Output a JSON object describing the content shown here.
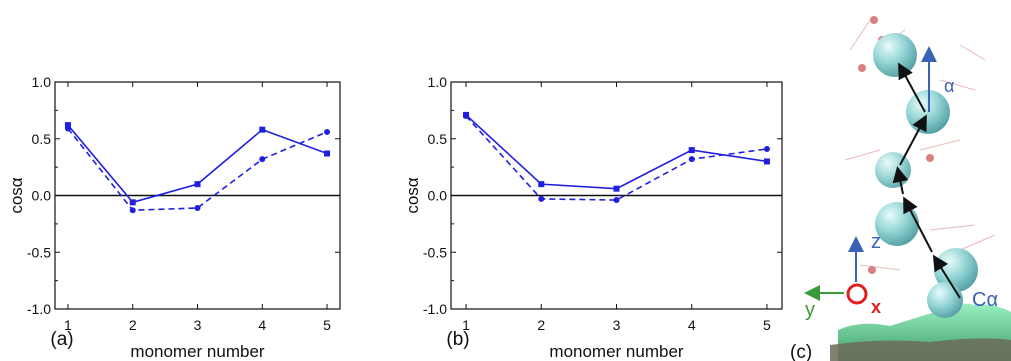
{
  "chart_data": [
    {
      "type": "line",
      "panel_label": "(a)",
      "xlabel": "monomer number",
      "ylabel": "cosα",
      "xlim": [
        0.8,
        5.2
      ],
      "ylim": [
        -1.0,
        1.0
      ],
      "x_ticks": [
        "1",
        "2",
        "3",
        "4",
        "5"
      ],
      "y_ticks": [
        "1.0",
        "0.5",
        "0.0",
        "-0.5",
        "-1.0"
      ],
      "zero_line": true,
      "x": [
        1,
        2,
        3,
        4,
        5
      ],
      "series": [
        {
          "style": "solid",
          "color": "#1f1fe0",
          "marker": "square",
          "values": [
            0.62,
            -0.06,
            0.1,
            0.58,
            0.37
          ]
        },
        {
          "style": "dashed",
          "color": "#1f1fe0",
          "marker": "circle",
          "values": [
            0.59,
            -0.13,
            -0.11,
            0.32,
            0.56
          ]
        }
      ]
    },
    {
      "type": "line",
      "panel_label": "(b)",
      "xlabel": "monomer number",
      "ylabel": "cosα",
      "xlim": [
        0.8,
        5.2
      ],
      "ylim": [
        -1.0,
        1.0
      ],
      "x_ticks": [
        "1",
        "2",
        "3",
        "4",
        "5"
      ],
      "y_ticks": [
        "1.0",
        "0.5",
        "0.0",
        "-0.5",
        "-1.0"
      ],
      "zero_line": true,
      "x": [
        1,
        2,
        3,
        4,
        5
      ],
      "series": [
        {
          "style": "solid",
          "color": "#1f1fe0",
          "marker": "square",
          "values": [
            0.71,
            0.1,
            0.06,
            0.4,
            0.3
          ]
        },
        {
          "style": "dashed",
          "color": "#1f1fe0",
          "marker": "circle",
          "values": [
            0.7,
            -0.03,
            -0.04,
            0.32,
            0.41
          ]
        }
      ]
    }
  ],
  "illustration": {
    "panel_label": "(c)",
    "angle_label": "α",
    "atom_label": "Cα",
    "axis_z": "z",
    "axis_y": "y",
    "axis_x": "x",
    "colors": {
      "bead": "#8fd3d3",
      "surface": "#4fcf8a",
      "arrow": "#111111",
      "axis_blue": "#3a62b5",
      "axis_green": "#3a9a3a",
      "axis_red": "#e02020"
    }
  }
}
